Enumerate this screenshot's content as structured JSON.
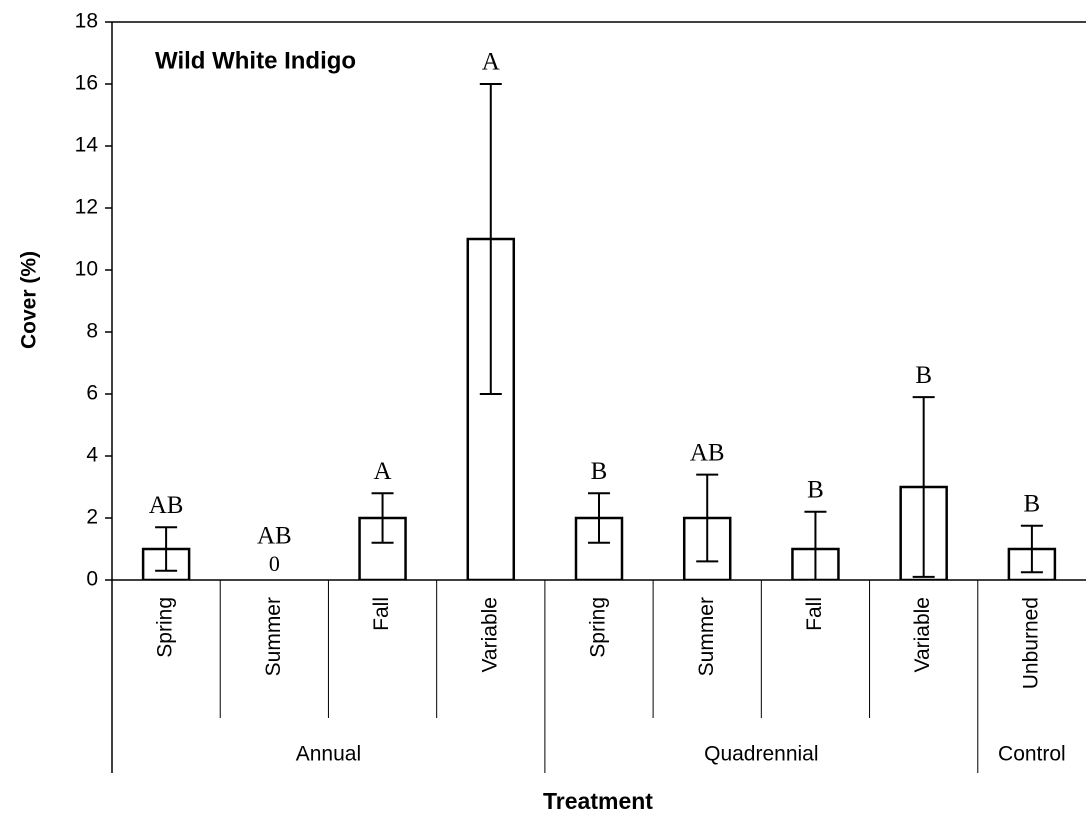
{
  "chart_data": {
    "type": "bar",
    "title": "Wild White Indigo",
    "x_label": "Treatment",
    "y_label": "Cover (%)",
    "groups": [
      {
        "name": "Annual",
        "categories": [
          "Spring",
          "Summer",
          "Fall",
          "Variable"
        ]
      },
      {
        "name": "Quadrennial",
        "categories": [
          "Spring",
          "Summer",
          "Fall",
          "Variable"
        ]
      },
      {
        "name": "Control",
        "categories": [
          "Unburned"
        ]
      }
    ],
    "series": [
      {
        "name": "Cover",
        "color": "#ffffff",
        "values": [
          1,
          0,
          2,
          11,
          2,
          2,
          1,
          3,
          1
        ],
        "errors": [
          0.7,
          0,
          0.8,
          5,
          0.8,
          1.4,
          1.2,
          2.9,
          0.75
        ],
        "letters": [
          "AB",
          "AB",
          "A",
          "A",
          "B",
          "AB",
          "B",
          "B",
          "B"
        ]
      }
    ],
    "ylim": [
      0,
      18
    ],
    "yticks": [
      0,
      2,
      4,
      6,
      8,
      10,
      12,
      14,
      16,
      18
    ]
  }
}
